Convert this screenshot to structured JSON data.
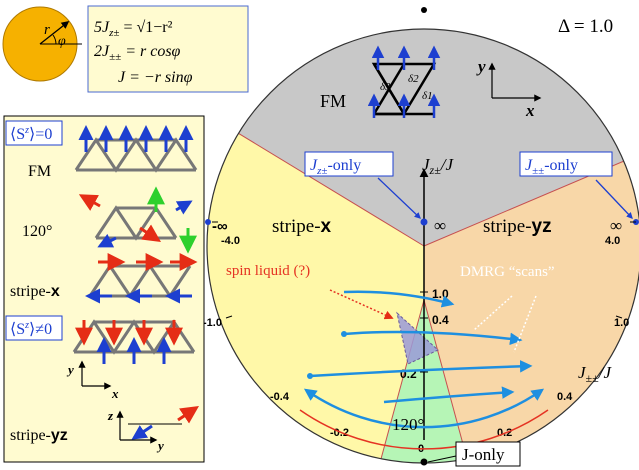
{
  "colors": {
    "fm_region": "#c8c8c8",
    "stripe_x_region": "#fff8a8",
    "stripe_yz_region": "#f8d7a8",
    "phase_120_region": "#b6f5b6",
    "spin_liquid": "#9a9ad8",
    "legend_bg": "#fffbd0",
    "spin_blue": "#1d3fd0",
    "spin_red": "#e52d16",
    "spin_green": "#2dd02d",
    "scan_blue": "#1e8fe0",
    "axis_label_red": "#e53323",
    "orange_disk": "#f6b100"
  },
  "param_box": {
    "r_label": "r",
    "phi_label": "φ",
    "eq1": "5J_z± = √1−r²",
    "eq1_lhs": "5J",
    "eq1_sub": "z±",
    "eq1_rhs": " = √1−r²",
    "eq2_lhs": "2J",
    "eq2_sub": "±±",
    "eq2_rhs": " = r cosφ",
    "eq3": "J = −r sinφ"
  },
  "delta_label": "Δ = 1.0",
  "phases": {
    "fm": "FM",
    "stripe_x_prefix": "stripe-",
    "stripe_x_suffix": "x",
    "stripe_yz_prefix": "stripe-",
    "stripe_yz_suffix": "yz",
    "phase_120": "120°"
  },
  "lattice_inset": {
    "d1": "δ1",
    "d2": "δ2",
    "d3": "δ3",
    "x": "x",
    "y": "y"
  },
  "labels": {
    "jzpm_only": "J_z± -only",
    "jzpm_only_main": "J",
    "jzpm_only_sub": "z±",
    "jzpm_only_tail": "-only",
    "jpmpm_only_main": "J",
    "jpmpm_only_sub": "±±",
    "jpmpm_only_tail": "-only",
    "j_only": "J-only",
    "vertical_axis_main": "J",
    "vertical_axis_sub": "z±",
    "vertical_axis_tail": "/J",
    "horizontal_axis_main": "J",
    "horizontal_axis_sub": "±±",
    "horizontal_axis_tail": "/J",
    "spin_liquid": "spin liquid (?)",
    "dmrg_scans": "DMRG “scans”",
    "inf": "∞",
    "neg_inf": "-∞"
  },
  "vertical_ticks": [
    "1.0",
    "0.4",
    "0.2",
    "0"
  ],
  "horizontal_ticks_left": [
    "-4.0",
    "-1.0",
    "-0.4",
    "-0.2"
  ],
  "horizontal_ticks_right": [
    "4.0",
    "1.0",
    "0.4",
    "0.2"
  ],
  "legend": {
    "sz_zero": "⟨S^z⟩=0",
    "sz_zero_text": "⟨S",
    "sz_zero_sup": "z",
    "sz_zero_tail": "⟩=0",
    "sz_nonzero_text": "⟨S",
    "sz_nonzero_sup": "z",
    "sz_nonzero_tail": "⟩≠0",
    "fm": "FM",
    "phase_120": "120°",
    "stripe_x_prefix": "stripe-",
    "stripe_x_suffix": "x",
    "stripe_yz_prefix": "stripe-",
    "stripe_yz_suffix": "yz",
    "axis_x": "x",
    "axis_y": "y",
    "axis_z": "z"
  }
}
